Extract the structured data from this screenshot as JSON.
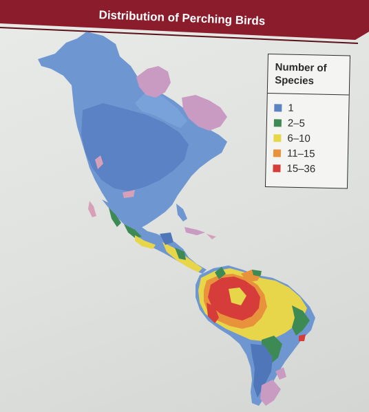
{
  "title": "Distribution of Perching Birds",
  "legend": {
    "title_line1": "Number of",
    "title_line2": "Species",
    "items": [
      {
        "label": "1",
        "color": "#5b82c2"
      },
      {
        "label": "2–5",
        "color": "#3e8a55"
      },
      {
        "label": "6–10",
        "color": "#e8d64a"
      },
      {
        "label": "11–15",
        "color": "#e8923c"
      },
      {
        "label": "15–36",
        "color": "#d63c3a"
      }
    ]
  },
  "colors": {
    "title_bar": "#8a1c2c",
    "ocean": "#e6e8e5",
    "continent_base": "#6e97d2",
    "continent_dark": "#4f76b8",
    "pink_regions": "#c99ac2"
  }
}
